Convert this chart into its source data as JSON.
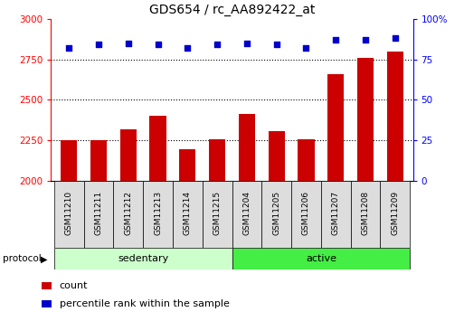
{
  "title": "GDS654 / rc_AA892422_at",
  "samples": [
    "GSM11210",
    "GSM11211",
    "GSM11212",
    "GSM11213",
    "GSM11214",
    "GSM11215",
    "GSM11204",
    "GSM11205",
    "GSM11206",
    "GSM11207",
    "GSM11208",
    "GSM11209"
  ],
  "counts": [
    2250,
    2252,
    2320,
    2400,
    2195,
    2255,
    2415,
    2305,
    2255,
    2660,
    2760,
    2800
  ],
  "percentile_ranks": [
    82,
    84,
    85,
    84,
    82,
    84,
    85,
    84,
    82,
    87,
    87,
    88
  ],
  "bar_color": "#cc0000",
  "dot_color": "#0000cc",
  "ylim_left": [
    2000,
    3000
  ],
  "ylim_right": [
    0,
    100
  ],
  "yticks_left": [
    2000,
    2250,
    2500,
    2750,
    3000
  ],
  "yticks_right": [
    0,
    25,
    50,
    75,
    100
  ],
  "grid_values": [
    2250,
    2500,
    2750
  ],
  "sedentary_color": "#ccffcc",
  "active_color": "#44ee44",
  "protocol_label": "protocol",
  "sedentary_label": "sedentary",
  "active_label": "active",
  "legend_count": "count",
  "legend_percentile": "percentile rank within the sample",
  "background_color": "#ffffff",
  "title_fontsize": 10,
  "bar_width": 0.55,
  "n_sedentary": 6,
  "n_active": 6,
  "fig_width": 5.13,
  "fig_height": 3.45,
  "dpi": 100
}
